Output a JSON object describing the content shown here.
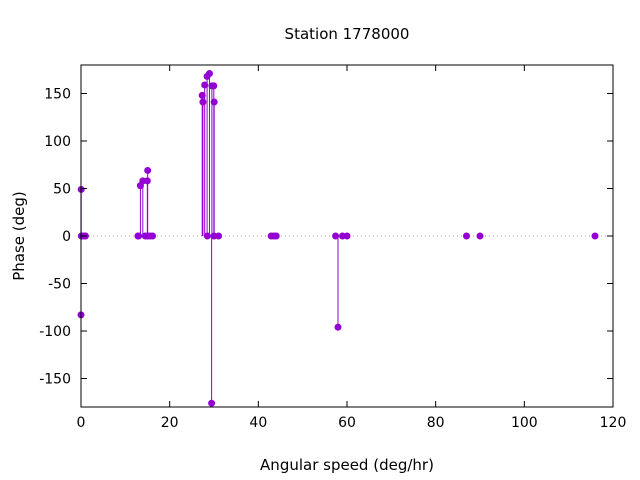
{
  "chart_data": {
    "type": "scatter",
    "style": "impulses-with-points",
    "title": "Station 1778000",
    "xlabel": "Angular speed (deg/hr)",
    "ylabel": "Phase (deg)",
    "xlim": [
      0,
      120
    ],
    "ylim": [
      -180,
      180
    ],
    "xticks": [
      0,
      20,
      40,
      60,
      80,
      100,
      120
    ],
    "yticks": [
      -150,
      -100,
      -50,
      0,
      50,
      100,
      150
    ],
    "zero_line": true,
    "grid": false,
    "legend": "none",
    "series": [
      {
        "color": "#9400d3",
        "points": [
          [
            0.0,
            -83
          ],
          [
            0.04,
            49
          ],
          [
            0.08,
            0
          ],
          [
            0.5,
            0
          ],
          [
            0.82,
            0
          ],
          [
            1.0,
            0
          ],
          [
            12.85,
            0
          ],
          [
            13.0,
            0
          ],
          [
            13.4,
            53
          ],
          [
            13.94,
            58
          ],
          [
            14.5,
            0
          ],
          [
            14.96,
            58
          ],
          [
            15.0,
            0
          ],
          [
            15.04,
            69
          ],
          [
            15.59,
            0
          ],
          [
            16.14,
            0
          ],
          [
            27.34,
            148
          ],
          [
            27.5,
            141
          ],
          [
            27.9,
            159
          ],
          [
            28.44,
            168
          ],
          [
            28.5,
            0
          ],
          [
            28.98,
            171
          ],
          [
            29.46,
            -176
          ],
          [
            29.53,
            158
          ],
          [
            29.96,
            158
          ],
          [
            30.0,
            0
          ],
          [
            30.04,
            141
          ],
          [
            31.02,
            0
          ],
          [
            42.9,
            0
          ],
          [
            43.48,
            0
          ],
          [
            44.03,
            0
          ],
          [
            57.42,
            0
          ],
          [
            57.97,
            -96
          ],
          [
            58.98,
            0
          ],
          [
            60.0,
            0
          ],
          [
            86.95,
            0
          ],
          [
            90.0,
            0
          ],
          [
            115.94,
            0
          ]
        ]
      }
    ]
  }
}
